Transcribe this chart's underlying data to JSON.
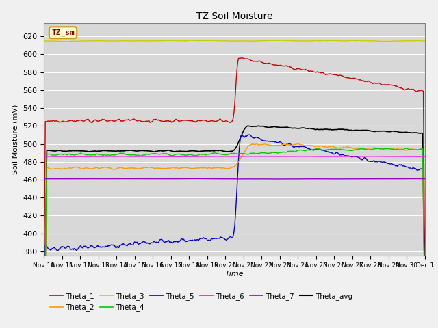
{
  "title": "TZ Soil Moisture",
  "xlabel": "Time",
  "ylabel": "Soil Moisture (mV)",
  "ylim": [
    375,
    635
  ],
  "yticks": [
    380,
    400,
    420,
    440,
    460,
    480,
    500,
    520,
    540,
    560,
    580,
    600,
    620
  ],
  "fig_bg_color": "#f0f0f0",
  "plot_bg_color": "#d8d8d8",
  "legend_label": "TZ_sm",
  "series_colors": {
    "Theta_1": "#cc0000",
    "Theta_2": "#ff9900",
    "Theta_3": "#cccc00",
    "Theta_4": "#00cc00",
    "Theta_5": "#0000cc",
    "Theta_6": "#ff00ff",
    "Theta_7": "#9900cc",
    "Theta_avg": "#000000"
  },
  "num_points": 504,
  "event_day": 10.5
}
